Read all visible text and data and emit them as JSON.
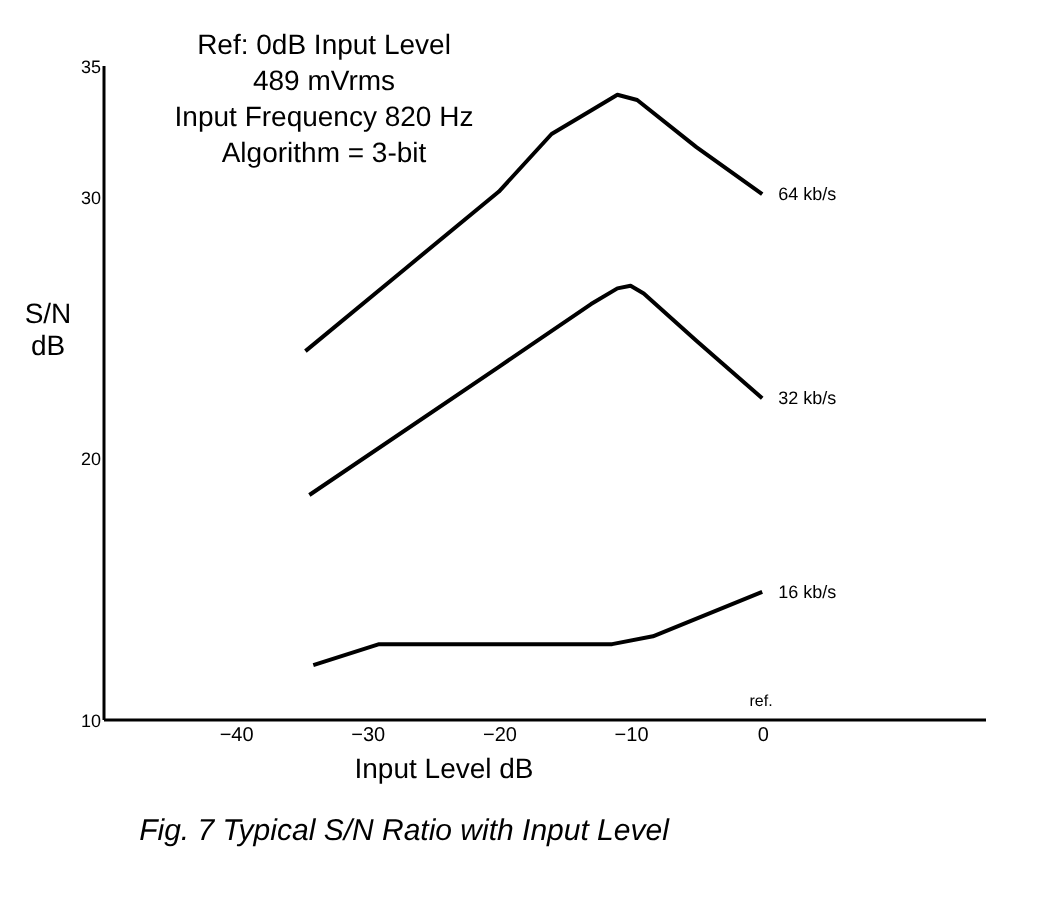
{
  "chart_data": {
    "type": "line",
    "xlabel": "Input Level dB",
    "ylabel": "S/N dB",
    "xlim": [
      -50,
      17
    ],
    "ylim": [
      10,
      35
    ],
    "xticks": [
      -40,
      -30,
      -20,
      -10,
      0
    ],
    "yticks": [
      10,
      20,
      30,
      35
    ],
    "grid": false,
    "marker": "none",
    "line_style": "solid",
    "series": [
      {
        "name": "64 kb/s",
        "color": "#000000",
        "x": [
          -34.7,
          -27,
          -20,
          -16,
          -13,
          -11,
          -9.5,
          -5,
          0
        ],
        "values": [
          24.1,
          27.3,
          30.2,
          32.4,
          33.3,
          33.9,
          33.7,
          31.9,
          30.1
        ]
      },
      {
        "name": "32 kb/s",
        "color": "#000000",
        "x": [
          -34.4,
          -20,
          -13,
          -11,
          -10,
          -9,
          -5,
          0
        ],
        "values": [
          18.6,
          23.5,
          25.9,
          26.5,
          26.6,
          26.3,
          24.5,
          22.3
        ]
      },
      {
        "name": "16 kb/s",
        "color": "#000000",
        "x": [
          -34.1,
          -29.1,
          -20,
          -11.4,
          -8.3,
          0
        ],
        "values": [
          12.1,
          12.9,
          12.9,
          12.9,
          13.2,
          14.9
        ]
      }
    ],
    "annotations": [
      "Ref: 0dB Input Level",
      "489 mVrms",
      "Input Frequency 820 Hz",
      "Algorithm = 3-bit",
      "ref.",
      "Fig. 7   Typical S/N Ratio with Input Level"
    ]
  }
}
